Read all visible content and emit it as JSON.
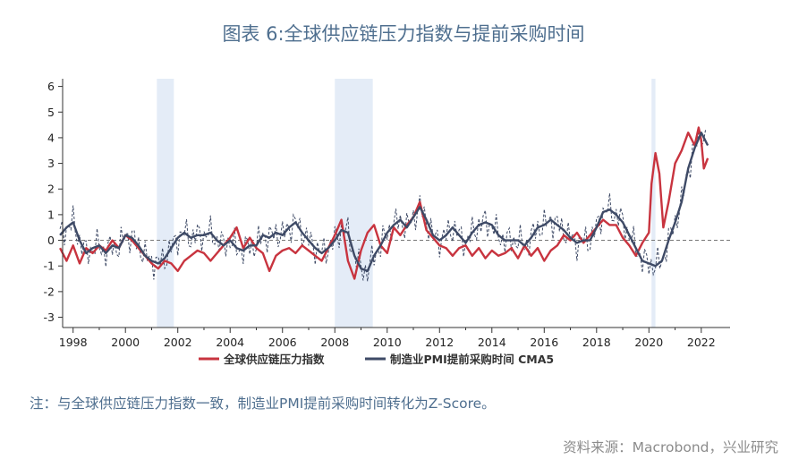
{
  "title": "图表 6:全球供应链压力指数与提前采购时间",
  "note": "注：与全球供应链压力指数一致，制造业PMI提前采购时间转化为Z-Score。",
  "source": "资料来源：Macrobond，兴业研究",
  "chart_data": {
    "type": "line",
    "xlim": [
      1997.6,
      2023.1
    ],
    "ylim": [
      -3.4,
      6.3
    ],
    "x_ticks": [
      "1998",
      "2000",
      "2002",
      "2004",
      "2006",
      "2008",
      "2010",
      "2012",
      "2014",
      "2016",
      "2018",
      "2020",
      "2022"
    ],
    "y_ticks": [
      "6",
      "5",
      "4",
      "3",
      "2",
      "1",
      "0",
      "-1",
      "-2",
      "-3"
    ],
    "recessions": [
      [
        2001.2,
        2001.85
      ],
      [
        2008.0,
        2009.45
      ],
      [
        2020.1,
        2020.25
      ]
    ],
    "colors": {
      "gscpi": "#c8343f",
      "pmi": "#3e4a66",
      "pmi_raw": "#3e4a66",
      "recession": "#e4ecf7"
    },
    "series": [
      {
        "name": "全球供应链压力指数",
        "x": [
          1997.5,
          1997.75,
          1998.0,
          1998.25,
          1998.5,
          1998.75,
          1999.0,
          1999.25,
          1999.5,
          1999.75,
          2000.0,
          2000.25,
          2000.5,
          2000.75,
          2001.0,
          2001.25,
          2001.5,
          2001.75,
          2002.0,
          2002.25,
          2002.5,
          2002.75,
          2003.0,
          2003.25,
          2003.5,
          2003.75,
          2004.0,
          2004.25,
          2004.5,
          2004.75,
          2005.0,
          2005.25,
          2005.5,
          2005.75,
          2006.0,
          2006.25,
          2006.5,
          2006.75,
          2007.0,
          2007.25,
          2007.5,
          2007.75,
          2008.0,
          2008.25,
          2008.5,
          2008.75,
          2009.0,
          2009.25,
          2009.5,
          2009.75,
          2010.0,
          2010.25,
          2010.5,
          2010.75,
          2011.0,
          2011.25,
          2011.5,
          2011.75,
          2012.0,
          2012.25,
          2012.5,
          2012.75,
          2013.0,
          2013.25,
          2013.5,
          2013.75,
          2014.0,
          2014.25,
          2014.5,
          2014.75,
          2015.0,
          2015.25,
          2015.5,
          2015.75,
          2016.0,
          2016.25,
          2016.5,
          2016.75,
          2017.0,
          2017.25,
          2017.5,
          2017.75,
          2018.0,
          2018.25,
          2018.5,
          2018.75,
          2019.0,
          2019.25,
          2019.5,
          2019.75,
          2020.0,
          2020.1,
          2020.25,
          2020.4,
          2020.55,
          2020.75,
          2021.0,
          2021.25,
          2021.5,
          2021.75,
          2021.9,
          2022.0,
          2022.1,
          2022.25
        ],
        "values": [
          -0.3,
          -0.8,
          -0.2,
          -0.9,
          -0.3,
          -0.5,
          -0.2,
          -0.4,
          0.0,
          -0.3,
          0.2,
          0.0,
          -0.3,
          -0.6,
          -0.9,
          -1.1,
          -0.8,
          -0.9,
          -1.2,
          -0.8,
          -0.6,
          -0.4,
          -0.5,
          -0.8,
          -0.5,
          -0.2,
          0.1,
          0.5,
          -0.3,
          0.1,
          -0.3,
          -0.5,
          -1.2,
          -0.6,
          -0.4,
          -0.3,
          -0.5,
          -0.2,
          -0.4,
          -0.6,
          -0.8,
          -0.3,
          0.2,
          0.8,
          -0.8,
          -1.5,
          -0.4,
          0.3,
          0.6,
          -0.2,
          -0.5,
          0.5,
          0.2,
          0.6,
          0.9,
          1.5,
          0.4,
          0.1,
          -0.2,
          -0.3,
          -0.6,
          -0.3,
          -0.2,
          -0.6,
          -0.3,
          -0.7,
          -0.4,
          -0.6,
          -0.5,
          -0.3,
          -0.7,
          -0.2,
          -0.6,
          -0.3,
          -0.8,
          -0.4,
          -0.2,
          0.2,
          0.0,
          0.3,
          -0.1,
          0.2,
          0.5,
          0.8,
          0.6,
          0.6,
          0.1,
          -0.2,
          -0.6,
          -0.1,
          0.3,
          2.2,
          3.4,
          2.6,
          0.5,
          1.5,
          3.0,
          3.5,
          4.2,
          3.7,
          4.4,
          3.9,
          2.8,
          3.2
        ]
      },
      {
        "name": "制造业PMI提前采购时间 CMA5",
        "x": [
          1997.5,
          1997.75,
          1998.0,
          1998.25,
          1998.5,
          1998.75,
          1999.0,
          1999.25,
          1999.5,
          1999.75,
          2000.0,
          2000.25,
          2000.5,
          2000.75,
          2001.0,
          2001.25,
          2001.5,
          2001.75,
          2002.0,
          2002.25,
          2002.5,
          2002.75,
          2003.0,
          2003.25,
          2003.5,
          2003.75,
          2004.0,
          2004.25,
          2004.5,
          2004.75,
          2005.0,
          2005.25,
          2005.5,
          2005.75,
          2006.0,
          2006.25,
          2006.5,
          2006.75,
          2007.0,
          2007.25,
          2007.5,
          2007.75,
          2008.0,
          2008.25,
          2008.5,
          2008.75,
          2009.0,
          2009.25,
          2009.5,
          2009.75,
          2010.0,
          2010.25,
          2010.5,
          2010.75,
          2011.0,
          2011.25,
          2011.5,
          2011.75,
          2012.0,
          2012.25,
          2012.5,
          2012.75,
          2013.0,
          2013.25,
          2013.5,
          2013.75,
          2014.0,
          2014.25,
          2014.5,
          2014.75,
          2015.0,
          2015.25,
          2015.5,
          2015.75,
          2016.0,
          2016.25,
          2016.5,
          2016.75,
          2017.0,
          2017.25,
          2017.5,
          2017.75,
          2018.0,
          2018.25,
          2018.5,
          2018.75,
          2019.0,
          2019.25,
          2019.5,
          2019.75,
          2020.0,
          2020.25,
          2020.5,
          2020.75,
          2021.0,
          2021.25,
          2021.5,
          2021.75,
          2022.0,
          2022.25
        ],
        "values": [
          0.2,
          0.5,
          0.7,
          0.0,
          -0.5,
          -0.3,
          -0.2,
          -0.5,
          -0.2,
          -0.3,
          0.2,
          0.1,
          -0.2,
          -0.6,
          -0.8,
          -0.9,
          -0.7,
          -0.3,
          0.1,
          0.3,
          0.1,
          0.2,
          0.2,
          0.3,
          0.0,
          -0.2,
          0.0,
          -0.3,
          -0.4,
          -0.2,
          -0.2,
          0.2,
          0.1,
          0.3,
          0.2,
          0.5,
          0.7,
          0.3,
          0.0,
          -0.3,
          -0.5,
          -0.3,
          0.0,
          0.4,
          0.3,
          -0.6,
          -1.1,
          -1.2,
          -0.6,
          -0.2,
          0.3,
          0.6,
          0.8,
          0.5,
          0.9,
          1.3,
          0.8,
          0.2,
          0.0,
          0.2,
          0.5,
          0.2,
          -0.1,
          0.3,
          0.6,
          0.7,
          0.6,
          0.2,
          0.0,
          0.0,
          0.0,
          -0.2,
          0.1,
          0.5,
          0.6,
          0.8,
          0.6,
          0.4,
          0.1,
          -0.1,
          0.0,
          0.0,
          0.5,
          1.1,
          1.2,
          1.0,
          0.7,
          0.2,
          -0.3,
          -0.8,
          -0.9,
          -1.0,
          -0.8,
          0.0,
          0.7,
          1.5,
          2.8,
          3.6,
          4.2,
          3.7
        ]
      }
    ]
  }
}
